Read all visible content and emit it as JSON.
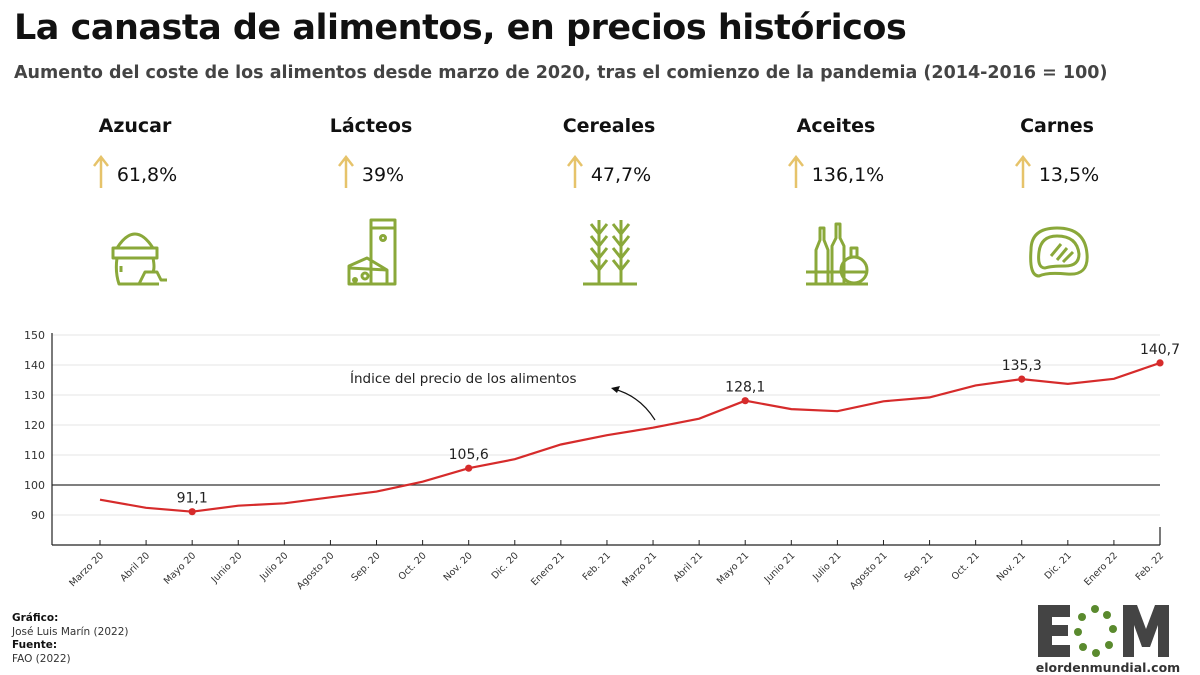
{
  "header": {
    "title": "La canasta de alimentos, en precios históricos",
    "subtitle": "Aumento del coste de los alimentos desde marzo de 2020, tras el comienzo de la pandemia (2014-2016 = 100)"
  },
  "categories": [
    {
      "name": "Azucar",
      "change": "61,8%",
      "icon": "sugar-sack-icon"
    },
    {
      "name": "Lácteos",
      "change": "39%",
      "icon": "dairy-milk-cheese-icon"
    },
    {
      "name": "Cereales",
      "change": "47,7%",
      "icon": "wheat-icon"
    },
    {
      "name": "Aceites",
      "change": "136,1%",
      "icon": "oil-bottles-icon"
    },
    {
      "name": "Carnes",
      "change": "13,5%",
      "icon": "steak-icon"
    }
  ],
  "colors": {
    "arrow": "#e6c36a",
    "icon": "#8aa83a",
    "line": "#d62b2b",
    "logo_green": "#5a8a2e",
    "logo_grey": "#444444"
  },
  "chart_data": {
    "type": "line",
    "title": "",
    "xlabel": "",
    "ylabel": "",
    "ylim": [
      80,
      150
    ],
    "yticks": [
      90,
      100,
      110,
      120,
      130,
      140,
      150
    ],
    "reference_line": 100,
    "grid": true,
    "categories": [
      "Marzo 20",
      "Abril 20",
      "Mayo 20",
      "Junio 20",
      "Julio 20",
      "Agosto 20",
      "Sep. 20",
      "Oct. 20",
      "Nov. 20",
      "Dic. 20",
      "Enero 21",
      "Feb. 21",
      "Marzo 21",
      "Abril 21",
      "Mayo 21",
      "Junio 21",
      "Julio 21",
      "Agosto 21",
      "Sep. 21",
      "Oct. 21",
      "Nov. 21",
      "Dic. 21",
      "Enero 22",
      "Feb. 22"
    ],
    "series": [
      {
        "name": "Índice del precio de los alimentos",
        "values": [
          95.1,
          92.4,
          91.1,
          93.1,
          93.9,
          95.9,
          97.8,
          101.1,
          105.6,
          108.6,
          113.5,
          116.6,
          119.1,
          122.1,
          128.1,
          125.3,
          124.6,
          127.9,
          129.2,
          133.2,
          135.3,
          133.7,
          135.4,
          140.7
        ]
      }
    ],
    "data_labels": [
      {
        "category": "Mayo 20",
        "label": "91,1"
      },
      {
        "category": "Nov. 20",
        "label": "105,6"
      },
      {
        "category": "Mayo 21",
        "label": "128,1"
      },
      {
        "category": "Nov. 21",
        "label": "135,3"
      },
      {
        "category": "Feb. 22",
        "label": "140,7"
      }
    ],
    "annotation": "Índice del precio de los alimentos"
  },
  "footer": {
    "chart_label": "Gráfico:",
    "chart_author": "José Luis Marín (2022)",
    "source_label": "Fuente:",
    "source": "FAO (2022)"
  },
  "logo": {
    "text": "EOM",
    "url": "elordenmundial.com"
  }
}
